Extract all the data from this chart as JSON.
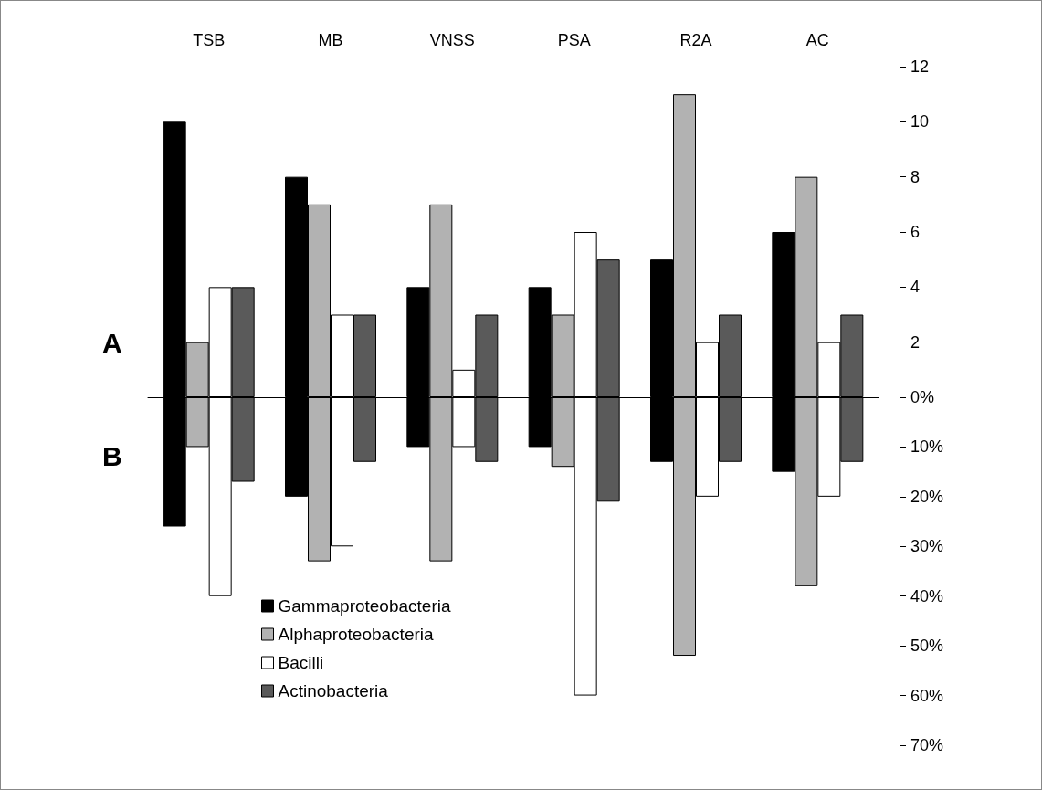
{
  "chart_data": [
    {
      "type": "bar",
      "title": "A",
      "categories": [
        "TSB",
        "MB",
        "VNSS",
        "PSA",
        "R2A",
        "AC"
      ],
      "series": [
        {
          "color": "#000000",
          "values": [
            10,
            8,
            4,
            4,
            5,
            6
          ]
        },
        {
          "color": "#b2b2b2",
          "values": [
            2,
            7,
            7,
            3,
            11,
            8
          ]
        },
        {
          "color": "#ffffff",
          "values": [
            4,
            3,
            1,
            6,
            2,
            2
          ]
        },
        {
          "color": "#5a5a5a",
          "values": [
            4,
            3,
            3,
            5,
            3,
            3
          ]
        }
      ],
      "ylim": [
        0,
        12
      ],
      "yticks": [
        2,
        4,
        6,
        8,
        10,
        12
      ],
      "legend": false
    },
    {
      "type": "bar",
      "title": "B",
      "categories": [
        null,
        null,
        null,
        null,
        null,
        null
      ],
      "series": [
        {
          "name": "Gammaproteobacteria",
          "color": "#000000",
          "values": [
            26,
            20,
            10,
            10,
            13,
            15
          ]
        },
        {
          "name": "Alphaproteobacteria",
          "color": "#b2b2b2",
          "values": [
            10,
            33,
            33,
            14,
            52,
            38
          ]
        },
        {
          "name": "Bacilli",
          "color": "#ffffff",
          "values": [
            40,
            30,
            10,
            60,
            20,
            20
          ]
        },
        {
          "name": "Actinobacteria",
          "color": "#5a5a5a",
          "values": [
            17,
            13,
            13,
            21,
            13,
            13
          ]
        }
      ],
      "ylim": [
        70,
        0
      ],
      "yticks": [
        {
          "value": 0,
          "label": "0%"
        },
        {
          "value": 10,
          "label": "10%"
        },
        {
          "value": 20,
          "label": "20%"
        },
        {
          "value": 30,
          "label": "30%"
        },
        {
          "value": 40,
          "label": "40%"
        },
        {
          "value": 50,
          "label": "50%"
        },
        {
          "value": 60,
          "label": "60%"
        },
        {
          "value": 70,
          "label": "70%"
        }
      ],
      "tick_labels": "y",
      "legend": "bottom left"
    }
  ]
}
